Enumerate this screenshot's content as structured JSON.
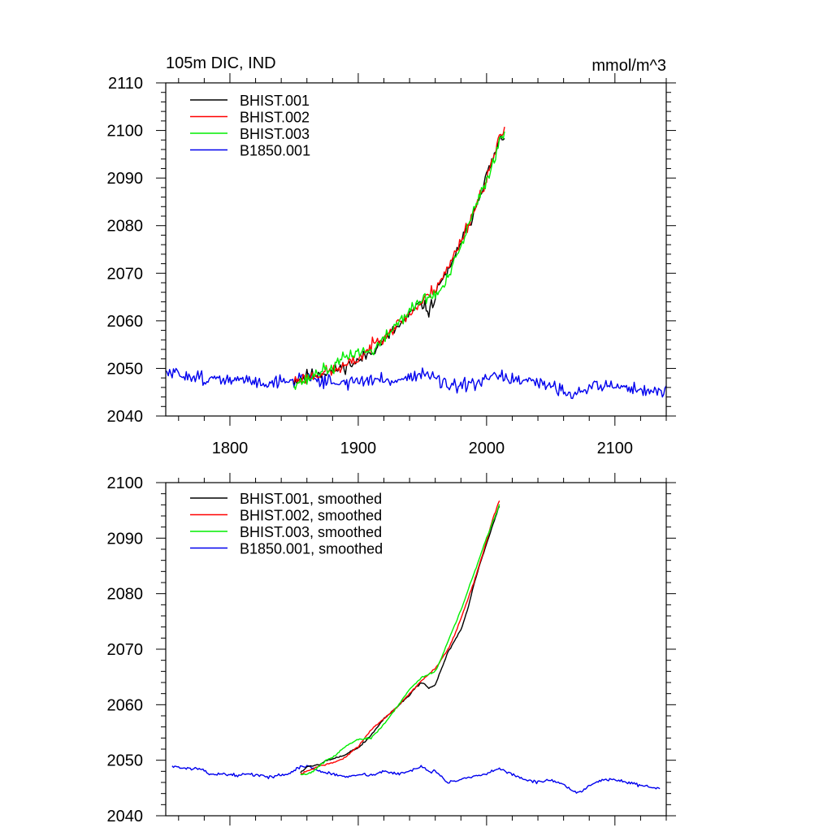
{
  "chart_data": [
    {
      "type": "line",
      "title_left": "105m DIC, IND",
      "title_right": "mmol/m^3",
      "xlim": [
        1750,
        2140
      ],
      "ylim": [
        2040,
        2110
      ],
      "x_ticks": [
        1800,
        1900,
        2000,
        2100
      ],
      "y_ticks": [
        2040,
        2050,
        2060,
        2070,
        2080,
        2090,
        2100,
        2110
      ],
      "show_x_tick_labels": true,
      "legend_position": "top-left",
      "series": [
        {
          "name": "BHIST.001",
          "color": "#000000",
          "noise": 1.3,
          "seed": 11,
          "x": [
            1850,
            1860,
            1870,
            1880,
            1890,
            1900,
            1910,
            1920,
            1930,
            1940,
            1945,
            1950,
            1955,
            1960,
            1965,
            1970,
            1975,
            1980,
            1985,
            1990,
            1995,
            2000,
            2005,
            2010,
            2014
          ],
          "y": [
            2047.5,
            2048.5,
            2049.0,
            2049.5,
            2050.5,
            2051.5,
            2053.5,
            2056.0,
            2058.5,
            2061.0,
            2063.0,
            2063.5,
            2062.0,
            2065.0,
            2069.0,
            2070.0,
            2073.0,
            2077.0,
            2079.0,
            2083.0,
            2087.0,
            2090.5,
            2094.0,
            2097.5,
            2099.0
          ]
        },
        {
          "name": "BHIST.002",
          "color": "#ff0000",
          "noise": 1.3,
          "seed": 23,
          "x": [
            1850,
            1860,
            1870,
            1880,
            1890,
            1900,
            1910,
            1920,
            1930,
            1940,
            1950,
            1960,
            1970,
            1980,
            1990,
            2000,
            2005,
            2010,
            2014
          ],
          "y": [
            2047.5,
            2048.0,
            2049.0,
            2049.5,
            2050.5,
            2052.0,
            2054.5,
            2057.0,
            2059.0,
            2061.5,
            2064.0,
            2067.0,
            2071.0,
            2077.0,
            2083.0,
            2090.0,
            2094.0,
            2098.0,
            2100.5
          ]
        },
        {
          "name": "BHIST.003",
          "color": "#00ee00",
          "noise": 1.3,
          "seed": 37,
          "x": [
            1850,
            1860,
            1870,
            1880,
            1890,
            1900,
            1910,
            1920,
            1930,
            1940,
            1950,
            1960,
            1965,
            1970,
            1980,
            1990,
            2000,
            2005,
            2010,
            2014
          ],
          "y": [
            2047.0,
            2047.5,
            2049.5,
            2050.0,
            2052.5,
            2053.5,
            2053.5,
            2056.0,
            2059.5,
            2062.0,
            2064.5,
            2065.5,
            2066.5,
            2069.0,
            2075.5,
            2083.0,
            2089.5,
            2093.5,
            2097.5,
            2099.5
          ]
        },
        {
          "name": "B1850.001",
          "color": "#0000ee",
          "noise": 1.4,
          "seed": 51,
          "x": [
            1750,
            1770,
            1790,
            1810,
            1830,
            1850,
            1860,
            1870,
            1890,
            1910,
            1930,
            1950,
            1960,
            1970,
            1990,
            2010,
            2030,
            2050,
            2070,
            2080,
            2090,
            2110,
            2130,
            2140
          ],
          "y": [
            2049.0,
            2048.5,
            2047.5,
            2047.5,
            2047.0,
            2047.5,
            2048.5,
            2047.5,
            2047.0,
            2047.5,
            2047.5,
            2049.0,
            2048.0,
            2046.0,
            2046.5,
            2048.5,
            2047.0,
            2046.5,
            2044.5,
            2046.0,
            2046.5,
            2046.0,
            2045.0,
            2045.0
          ]
        }
      ]
    },
    {
      "type": "line",
      "xlim": [
        1750,
        2140
      ],
      "ylim": [
        2040,
        2100
      ],
      "x_ticks": [
        1800,
        1900,
        2000,
        2100
      ],
      "y_ticks": [
        2040,
        2050,
        2060,
        2070,
        2080,
        2090,
        2100
      ],
      "show_x_tick_labels": false,
      "legend_position": "top-left",
      "series": [
        {
          "name": "BHIST.001, smoothed",
          "color": "#000000",
          "noise": 0.15,
          "seed": 5,
          "x": [
            1855,
            1860,
            1865,
            1870,
            1875,
            1880,
            1890,
            1895,
            1900,
            1910,
            1920,
            1930,
            1940,
            1945,
            1950,
            1955,
            1960,
            1965,
            1970,
            1975,
            1980,
            1985,
            1990,
            1995,
            2000,
            2005,
            2010
          ],
          "y": [
            2047.8,
            2048.8,
            2049.0,
            2049.3,
            2050.0,
            2050.2,
            2051.0,
            2051.8,
            2052.2,
            2054.5,
            2057.5,
            2059.5,
            2061.8,
            2063.2,
            2064.0,
            2063.0,
            2063.5,
            2066.5,
            2069.5,
            2071.5,
            2073.5,
            2077.0,
            2081.5,
            2085.5,
            2089.0,
            2092.5,
            2095.8
          ]
        },
        {
          "name": "BHIST.002, smoothed",
          "color": "#ff0000",
          "noise": 0.15,
          "seed": 7,
          "x": [
            1855,
            1860,
            1865,
            1870,
            1880,
            1890,
            1900,
            1910,
            1920,
            1930,
            1940,
            1950,
            1960,
            1970,
            1975,
            1980,
            1990,
            2000,
            2005,
            2010
          ],
          "y": [
            2047.5,
            2048.0,
            2048.5,
            2049.0,
            2049.5,
            2050.5,
            2052.5,
            2055.5,
            2057.5,
            2059.5,
            2062.0,
            2064.5,
            2066.5,
            2070.0,
            2072.5,
            2075.5,
            2082.0,
            2089.5,
            2093.5,
            2096.8
          ]
        },
        {
          "name": "BHIST.003, smoothed",
          "color": "#00ee00",
          "noise": 0.15,
          "seed": 9,
          "x": [
            1855,
            1860,
            1865,
            1870,
            1875,
            1880,
            1890,
            1900,
            1910,
            1920,
            1930,
            1940,
            1950,
            1960,
            1965,
            1970,
            1980,
            1990,
            2000,
            2010
          ],
          "y": [
            2047.5,
            2047.5,
            2048.0,
            2049.0,
            2050.0,
            2050.5,
            2052.5,
            2053.8,
            2054.0,
            2056.5,
            2059.5,
            2062.8,
            2065.0,
            2066.0,
            2068.5,
            2071.5,
            2077.0,
            2083.5,
            2090.0,
            2096.0
          ]
        },
        {
          "name": "B1850.001, smoothed",
          "color": "#0000ee",
          "noise": 0.25,
          "seed": 13,
          "x": [
            1755,
            1765,
            1775,
            1785,
            1795,
            1805,
            1815,
            1830,
            1845,
            1855,
            1860,
            1870,
            1880,
            1890,
            1900,
            1910,
            1920,
            1930,
            1940,
            1950,
            1955,
            1960,
            1970,
            1980,
            1990,
            2000,
            2010,
            2020,
            2030,
            2040,
            2050,
            2060,
            2070,
            2075,
            2080,
            2090,
            2100,
            2110,
            2120,
            2130,
            2135
          ],
          "y": [
            2049.0,
            2048.5,
            2048.5,
            2047.5,
            2047.5,
            2047.3,
            2047.5,
            2047.0,
            2047.5,
            2048.8,
            2049.0,
            2048.0,
            2047.5,
            2047.0,
            2047.5,
            2047.3,
            2048.0,
            2047.5,
            2048.0,
            2049.0,
            2048.0,
            2048.0,
            2046.0,
            2046.5,
            2047.0,
            2047.5,
            2048.5,
            2047.5,
            2046.5,
            2046.0,
            2046.5,
            2045.5,
            2044.0,
            2044.5,
            2045.5,
            2046.5,
            2046.5,
            2046.0,
            2045.5,
            2045.0,
            2045.0
          ]
        }
      ]
    }
  ]
}
